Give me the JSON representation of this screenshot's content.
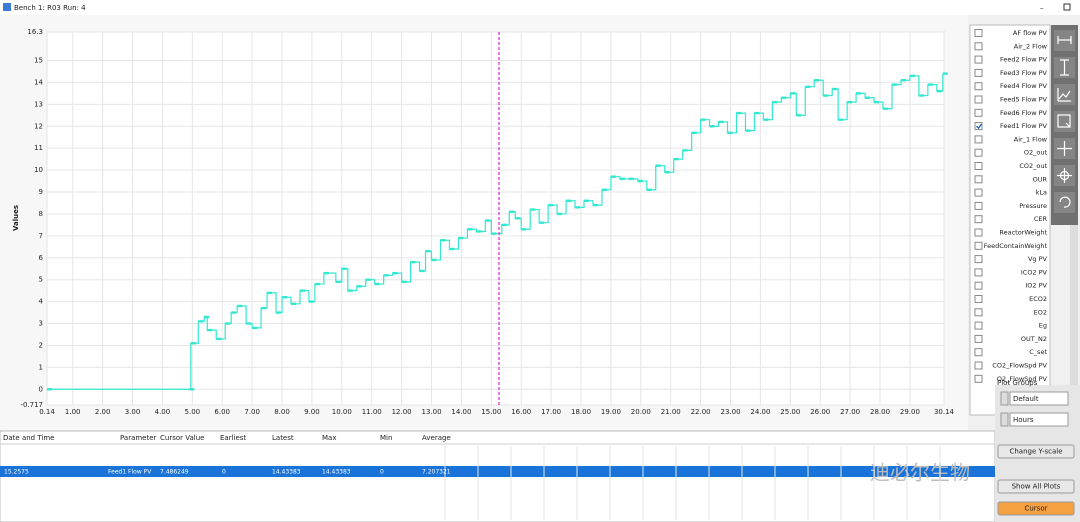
{
  "window": {
    "title": "Bench 1: R03 Run: 4"
  },
  "chart_data": {
    "type": "line",
    "y_label": "Values",
    "step": true,
    "grid": true,
    "color": "#33e8d0",
    "cursor_color": "#e020e0",
    "x": [
      0.14,
      4.9,
      4.95,
      5.2,
      5.4,
      5.5,
      5.8,
      6.1,
      6.3,
      6.5,
      6.8,
      7.0,
      7.3,
      7.5,
      7.8,
      8.0,
      8.3,
      8.6,
      8.9,
      9.1,
      9.4,
      9.8,
      10.0,
      10.2,
      10.5,
      10.8,
      11.1,
      11.4,
      11.7,
      12.0,
      12.3,
      12.6,
      12.8,
      13.0,
      13.3,
      13.6,
      13.9,
      14.2,
      14.5,
      14.8,
      15.0,
      15.35,
      15.6,
      15.8,
      16.0,
      16.3,
      16.6,
      16.9,
      17.2,
      17.5,
      17.8,
      18.1,
      18.4,
      18.7,
      19.0,
      19.3,
      19.6,
      19.9,
      20.2,
      20.5,
      20.8,
      21.1,
      21.4,
      21.7,
      22.0,
      22.3,
      22.6,
      22.9,
      23.2,
      23.5,
      23.8,
      24.1,
      24.4,
      24.7,
      25.0,
      25.2,
      25.5,
      25.8,
      26.1,
      26.4,
      26.6,
      26.9,
      27.2,
      27.5,
      27.8,
      28.1,
      28.4,
      28.7,
      29.0,
      29.3,
      29.6,
      29.9,
      30.1
    ],
    "series": [
      {
        "values": [
          0,
          0,
          2.1,
          3.1,
          3.3,
          2.7,
          2.3,
          3.0,
          3.5,
          3.8,
          3.0,
          2.8,
          3.7,
          4.4,
          3.5,
          4.2,
          3.9,
          4.5,
          4.0,
          4.8,
          5.3,
          4.9,
          5.5,
          4.5,
          4.7,
          5.0,
          4.8,
          5.2,
          5.3,
          4.9,
          5.8,
          5.4,
          6.3,
          5.9,
          6.8,
          6.4,
          6.9,
          7.3,
          7.2,
          7.7,
          7.1,
          7.5,
          8.1,
          7.8,
          7.3,
          8.2,
          7.6,
          8.4,
          8.0,
          8.6,
          8.3,
          8.6,
          8.4,
          9.1,
          9.7,
          9.6,
          9.6,
          9.5,
          9.1,
          10.2,
          9.9,
          10.5,
          10.9,
          11.7,
          12.3,
          12.0,
          12.2,
          11.7,
          12.6,
          11.8,
          12.6,
          12.3,
          13.1,
          13.3,
          13.5,
          12.5,
          13.8,
          14.1,
          13.4,
          13.7,
          12.3,
          13.1,
          13.5,
          13.3,
          13.1,
          12.8,
          13.9,
          14.1,
          14.3,
          13.4,
          13.9,
          13.6,
          14.4
        ]
      }
    ],
    "xlim": [
      0.14,
      30.14
    ],
    "ylim": [
      -0.717,
      16.3
    ],
    "xticks": [
      0.14,
      {
        "value": 1,
        "label": "1.00"
      },
      {
        "value": 2,
        "label": "2.00"
      },
      {
        "value": 3,
        "label": "3.00"
      },
      {
        "value": 4,
        "label": "4.00"
      },
      {
        "value": 5,
        "label": "5.00"
      },
      {
        "value": 6,
        "label": "6.00"
      },
      {
        "value": 7,
        "label": "7.00"
      },
      {
        "value": 8,
        "label": "8.00"
      },
      {
        "value": 9,
        "label": "9.00"
      },
      {
        "value": 10,
        "label": "10.00"
      },
      {
        "value": 11,
        "label": "11.00"
      },
      {
        "value": 12,
        "label": "12.00"
      },
      {
        "value": 13,
        "label": "13.00"
      },
      {
        "value": 14,
        "label": "14.00"
      },
      {
        "value": 15,
        "label": "15.00"
      },
      {
        "value": 16,
        "label": "16.00"
      },
      {
        "value": 17,
        "label": "17.00"
      },
      {
        "value": 18,
        "label": "18.00"
      },
      {
        "value": 19,
        "label": "19.00"
      },
      {
        "value": 20,
        "label": "20.00"
      },
      {
        "value": 21,
        "label": "21.00"
      },
      {
        "value": 22,
        "label": "22.00"
      },
      {
        "value": 23,
        "label": "23.00"
      },
      {
        "value": 24,
        "label": "24.00"
      },
      {
        "value": 25,
        "label": "25.00"
      },
      {
        "value": 26,
        "label": "26.00"
      },
      {
        "value": 27,
        "label": "27.00"
      },
      {
        "value": 28,
        "label": "28.00"
      },
      {
        "value": 29,
        "label": "29.00"
      },
      30.14
    ],
    "yticks": [
      -0.717,
      0,
      1,
      2,
      3,
      4,
      5,
      6,
      7,
      8,
      9,
      10,
      11,
      12,
      13,
      14,
      15,
      16.3
    ]
  },
  "parameters": [
    {
      "label": "AF flow PV",
      "checked": false
    },
    {
      "label": "Air_2 Flow",
      "checked": false
    },
    {
      "label": "Feed2 Flow PV",
      "checked": false
    },
    {
      "label": "Feed3 Flow PV",
      "checked": false
    },
    {
      "label": "Feed4 Flow PV",
      "checked": false
    },
    {
      "label": "Feed5 Flow PV",
      "checked": false
    },
    {
      "label": "Feed6 Flow PV",
      "checked": false
    },
    {
      "label": "Feed1 Flow PV",
      "checked": true
    },
    {
      "label": "Air_1 Flow",
      "checked": false
    },
    {
      "label": "O2_out",
      "checked": false
    },
    {
      "label": "CO2_out",
      "checked": false
    },
    {
      "label": "OUR",
      "checked": false
    },
    {
      "label": "kLa",
      "checked": false
    },
    {
      "label": "Pressure",
      "checked": false
    },
    {
      "label": "CER",
      "checked": false
    },
    {
      "label": "ReactorWeight",
      "checked": false
    },
    {
      "label": "FeedContainWeight",
      "checked": false
    },
    {
      "label": "Vg PV",
      "checked": false
    },
    {
      "label": "ICO2 PV",
      "checked": false
    },
    {
      "label": "IO2 PV",
      "checked": false
    },
    {
      "label": "ECO2",
      "checked": false
    },
    {
      "label": "EO2",
      "checked": false
    },
    {
      "label": "Eg",
      "checked": false
    },
    {
      "label": "OUT_N2",
      "checked": false
    },
    {
      "label": "C_set",
      "checked": false
    },
    {
      "label": "CO2_FlowSpd PV",
      "checked": false
    },
    {
      "label": "O2_FlowSpd PV",
      "checked": false
    }
  ],
  "controls": {
    "plot_groups_label": "Plot Groups",
    "plot_group": "Default",
    "time_unit": "Hours",
    "buttons": [
      "Change Y-scale",
      "Show All Plots",
      "Cursor"
    ]
  },
  "table": {
    "headers": [
      "Date and Time",
      "Parameter",
      "Cursor Value",
      "Earliest",
      "Latest",
      "Max",
      "Min",
      "Average"
    ],
    "rows": [
      [
        "15.2575",
        "Feed1 Flow PV",
        "7.486249",
        "0",
        "14.43383",
        "14.43383",
        "0",
        "7.207321"
      ]
    ]
  },
  "watermark": "迪必尔生物"
}
